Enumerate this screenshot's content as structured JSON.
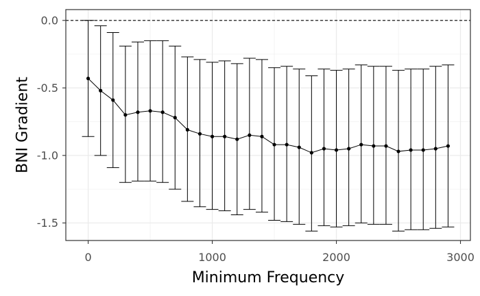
{
  "chart_data": {
    "type": "line",
    "title": "",
    "xlabel": "Minimum Frequency",
    "ylabel": "BNI Gradient",
    "xlim": [
      -180,
      3080
    ],
    "ylim": [
      -1.63,
      0.08
    ],
    "x_ticks": [
      0,
      1000,
      2000,
      3000
    ],
    "x_tick_labels": [
      "0",
      "1000",
      "2000",
      "3000"
    ],
    "y_ticks": [
      0.0,
      -0.5,
      -1.0,
      -1.5
    ],
    "y_tick_labels": [
      "0.0",
      "-0.5",
      "-1.0",
      "-1.5"
    ],
    "grid": true,
    "reference_line": {
      "y": 0,
      "style": "dashed"
    },
    "series": [
      {
        "x": [
          0,
          100,
          200,
          300,
          400,
          500,
          600,
          700,
          800,
          900,
          1000,
          1100,
          1200,
          1300,
          1400,
          1500,
          1600,
          1700,
          1800,
          1900,
          2000,
          2100,
          2200,
          2300,
          2400,
          2500,
          2600,
          2700,
          2800,
          2900
        ],
        "y": [
          -0.43,
          -0.52,
          -0.59,
          -0.7,
          -0.68,
          -0.67,
          -0.68,
          -0.72,
          -0.81,
          -0.84,
          -0.86,
          -0.86,
          -0.88,
          -0.85,
          -0.86,
          -0.92,
          -0.92,
          -0.94,
          -0.98,
          -0.95,
          -0.96,
          -0.95,
          -0.92,
          -0.93,
          -0.93,
          -0.97,
          -0.96,
          -0.96,
          -0.95,
          -0.93
        ],
        "upper": [
          0.0,
          -0.04,
          -0.09,
          -0.19,
          -0.16,
          -0.15,
          -0.15,
          -0.19,
          -0.27,
          -0.29,
          -0.31,
          -0.3,
          -0.32,
          -0.28,
          -0.29,
          -0.35,
          -0.34,
          -0.36,
          -0.41,
          -0.36,
          -0.37,
          -0.36,
          -0.33,
          -0.34,
          -0.34,
          -0.37,
          -0.36,
          -0.36,
          -0.34,
          -0.33
        ],
        "lower": [
          -0.86,
          -1.0,
          -1.09,
          -1.2,
          -1.19,
          -1.19,
          -1.2,
          -1.25,
          -1.34,
          -1.38,
          -1.4,
          -1.41,
          -1.44,
          -1.4,
          -1.42,
          -1.48,
          -1.49,
          -1.51,
          -1.56,
          -1.52,
          -1.53,
          -1.52,
          -1.5,
          -1.51,
          -1.51,
          -1.56,
          -1.55,
          -1.55,
          -1.54,
          -1.53
        ]
      }
    ]
  }
}
